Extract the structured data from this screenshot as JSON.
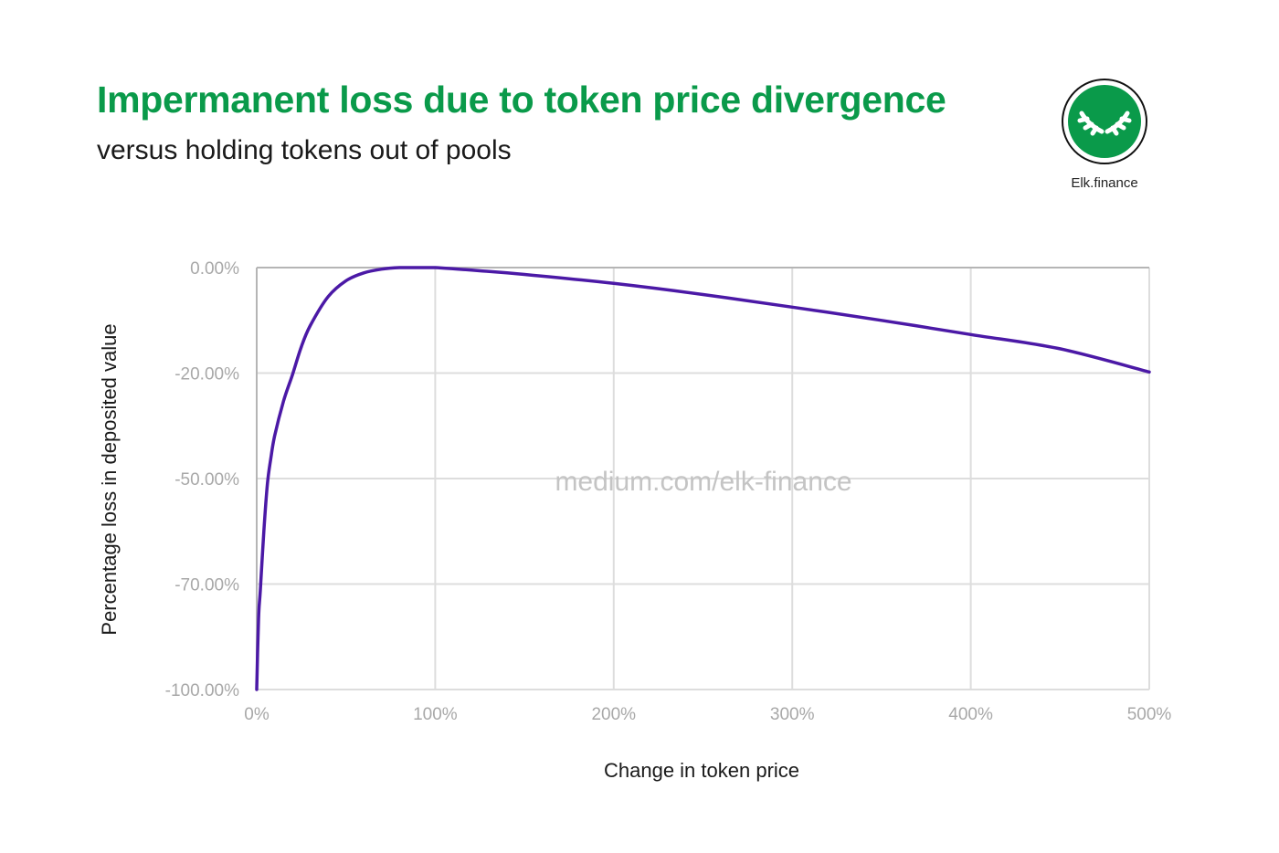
{
  "header": {
    "title": "Impermanent loss due to token price divergence",
    "subtitle": "versus holding tokens out of pools"
  },
  "brand": {
    "name": "Elk.finance",
    "logo_icon": "elk-antlers-icon",
    "color": "#0a9a4a"
  },
  "watermark": "medium.com/elk-finance",
  "colors": {
    "title": "#0a9a4a",
    "line": "#4b19a6",
    "grid": "#dddddd"
  },
  "chart_data": {
    "type": "line",
    "xlabel": "Change in token price",
    "ylabel": "Percentage loss in deposited value",
    "x_ticks": [
      "0%",
      "100%",
      "200%",
      "300%",
      "400%",
      "500%"
    ],
    "y_ticks": [
      "0.00%",
      "-20.00%",
      "-50.00%",
      "-70.00%",
      "-100.00%"
    ],
    "grid": true,
    "series": [
      {
        "x": [
          0,
          1,
          2,
          4,
          6,
          8,
          10,
          15,
          20,
          25,
          30,
          40,
          50,
          60,
          70,
          80,
          90,
          100,
          125,
          150,
          200,
          250,
          300,
          350,
          400,
          450,
          500
        ],
        "y": [
          -100,
          -80,
          -72,
          -60,
          -51,
          -44,
          -38,
          -28,
          -20.5,
          -15,
          -11,
          -5.5,
          -2.5,
          -1.0,
          -0.3,
          0,
          0,
          0,
          -0.6,
          -1.3,
          -3.0,
          -5.1,
          -7.5,
          -10.0,
          -12.7,
          -15.4,
          -19.8
        ]
      }
    ]
  }
}
